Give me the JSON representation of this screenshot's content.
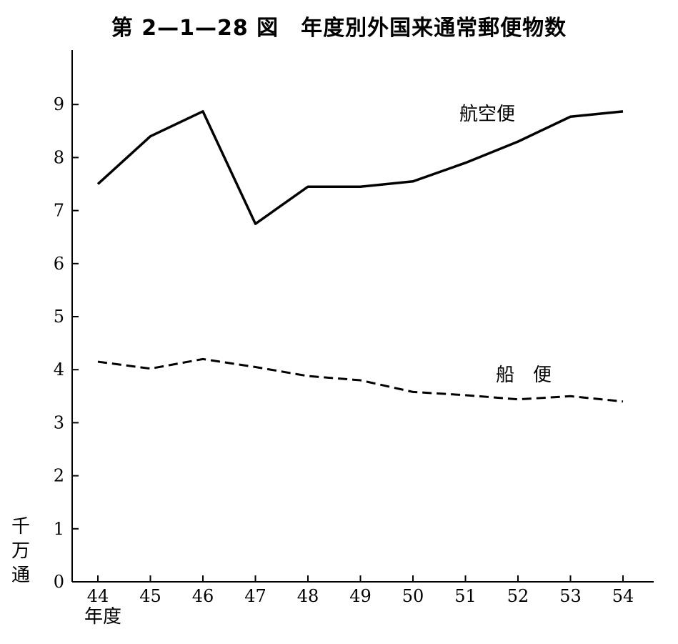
{
  "chart_data": {
    "type": "line",
    "title": "第 2—1—28 図　年度別外国来通常郵便物数",
    "xlabel": "年度",
    "ylabel": "千万通",
    "categories": [
      "44",
      "45",
      "46",
      "47",
      "48",
      "49",
      "50",
      "51",
      "52",
      "53",
      "54"
    ],
    "y_ticks": [
      "0",
      "1",
      "2",
      "3",
      "4",
      "5",
      "6",
      "7",
      "8",
      "9"
    ],
    "ylim": [
      0,
      9.9
    ],
    "grid": false,
    "series": [
      {
        "name": "航空便",
        "style": "solid",
        "values": [
          7.5,
          8.4,
          8.87,
          6.75,
          7.45,
          7.45,
          7.55,
          7.9,
          8.3,
          8.77,
          8.87
        ]
      },
      {
        "name": "船　便",
        "style": "dashed",
        "values": [
          4.15,
          4.02,
          4.2,
          4.05,
          3.88,
          3.8,
          3.58,
          3.52,
          3.44,
          3.5,
          3.4
        ]
      }
    ]
  }
}
